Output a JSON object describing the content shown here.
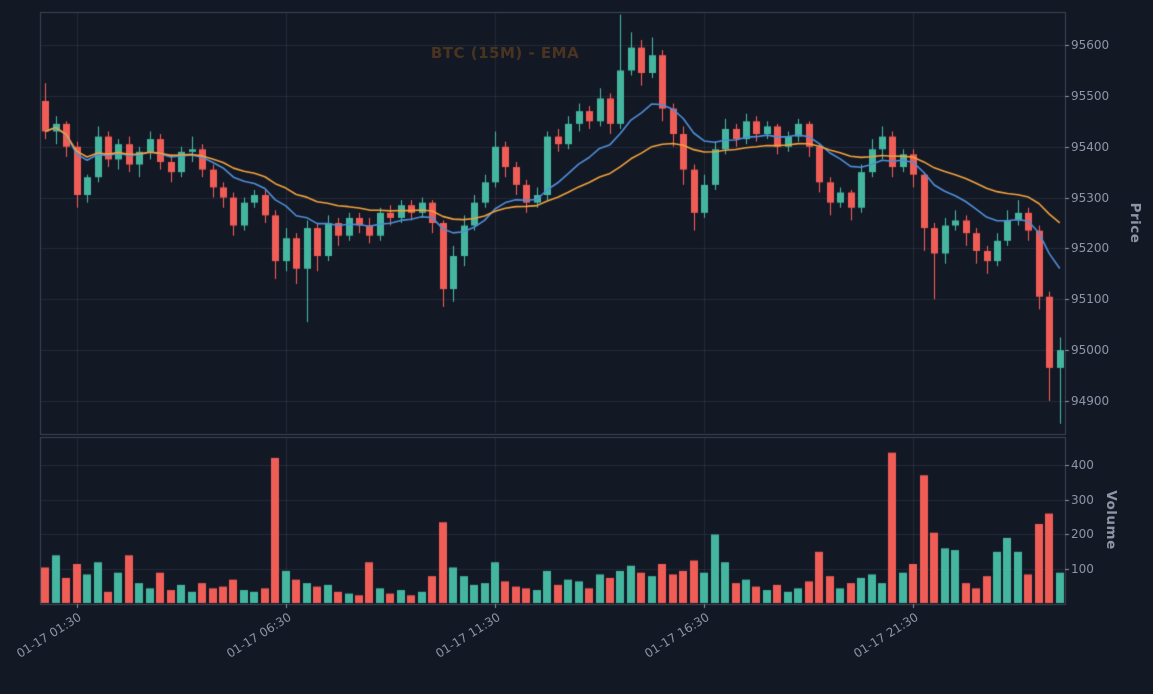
{
  "chart_data": {
    "type": "candlestick",
    "title": "BTC (15M) - EMA",
    "symbol": "BTC",
    "interval": "15M",
    "price_axis": {
      "label": "Price",
      "ticks": [
        95600,
        95500,
        95400,
        95300,
        95200,
        95100,
        95000,
        94900
      ],
      "range": [
        94835,
        95665
      ]
    },
    "volume_axis": {
      "label": "Volume",
      "ticks": [
        400,
        300,
        200,
        100
      ],
      "range": [
        0,
        480
      ]
    },
    "x_axis": {
      "tick_labels": [
        "01-17 01:30",
        "01-17 06:30",
        "01-17 11:30",
        "01-17 16:30",
        "01-17 21:30"
      ],
      "tick_indices": [
        3,
        23,
        43,
        63,
        83
      ]
    },
    "legend_position": "none",
    "grid": true,
    "indicators": [
      {
        "type": "ema",
        "period": 12,
        "color": "#4f8fd9"
      },
      {
        "type": "ema",
        "period": 30,
        "color": "#f0a23c"
      }
    ],
    "theme": {
      "background": "#131825",
      "up_color": "#44b69f",
      "down_color": "#f05c56",
      "grid_color": "rgba(140,152,178,0.14)",
      "spine_color": "#3d4455",
      "tick_color": "#8d95a6",
      "title_color": "#4a3420"
    },
    "candles_format": [
      "open",
      "high",
      "low",
      "close",
      "volume"
    ],
    "candles": [
      [
        95490,
        95525,
        95415,
        95430,
        105
      ],
      [
        95430,
        95460,
        95405,
        95445,
        140
      ],
      [
        95445,
        95450,
        95380,
        95400,
        75
      ],
      [
        95400,
        95410,
        95280,
        95305,
        115
      ],
      [
        95305,
        95345,
        95290,
        95340,
        85
      ],
      [
        95340,
        95440,
        95330,
        95420,
        120
      ],
      [
        95420,
        95430,
        95360,
        95375,
        35
      ],
      [
        95375,
        95415,
        95355,
        95405,
        90
      ],
      [
        95405,
        95420,
        95350,
        95365,
        140
      ],
      [
        95365,
        95400,
        95340,
        95390,
        60
      ],
      [
        95390,
        95430,
        95375,
        95415,
        45
      ],
      [
        95415,
        95425,
        95355,
        95370,
        90
      ],
      [
        95370,
        95385,
        95330,
        95350,
        40
      ],
      [
        95350,
        95400,
        95340,
        95390,
        55
      ],
      [
        95390,
        95420,
        95370,
        95395,
        35
      ],
      [
        95395,
        95405,
        95340,
        95355,
        60
      ],
      [
        95355,
        95365,
        95300,
        95320,
        45
      ],
      [
        95320,
        95330,
        95280,
        95300,
        50
      ],
      [
        95300,
        95310,
        95225,
        95245,
        70
      ],
      [
        95245,
        95300,
        95235,
        95290,
        40
      ],
      [
        95290,
        95315,
        95280,
        95305,
        35
      ],
      [
        95305,
        95315,
        95250,
        95265,
        45
      ],
      [
        95265,
        95275,
        95140,
        95175,
        420
      ],
      [
        95175,
        95240,
        95155,
        95220,
        95
      ],
      [
        95220,
        95230,
        95130,
        95160,
        70
      ],
      [
        95160,
        95255,
        95055,
        95240,
        60
      ],
      [
        95240,
        95250,
        95155,
        95185,
        50
      ],
      [
        95185,
        95265,
        95175,
        95250,
        55
      ],
      [
        95250,
        95260,
        95205,
        95225,
        35
      ],
      [
        95225,
        95270,
        95215,
        95260,
        30
      ],
      [
        95260,
        95270,
        95230,
        95245,
        25
      ],
      [
        95245,
        95260,
        95210,
        95225,
        120
      ],
      [
        95225,
        95280,
        95215,
        95270,
        45
      ],
      [
        95270,
        95285,
        95245,
        95260,
        30
      ],
      [
        95260,
        95295,
        95250,
        95285,
        40
      ],
      [
        95285,
        95295,
        95255,
        95270,
        25
      ],
      [
        95270,
        95300,
        95260,
        95290,
        35
      ],
      [
        95290,
        95295,
        95230,
        95250,
        80
      ],
      [
        95250,
        95255,
        95085,
        95120,
        235
      ],
      [
        95120,
        95205,
        95095,
        95185,
        105
      ],
      [
        95185,
        95265,
        95165,
        95245,
        80
      ],
      [
        95245,
        95305,
        95235,
        95290,
        55
      ],
      [
        95290,
        95345,
        95280,
        95330,
        60
      ],
      [
        95330,
        95430,
        95320,
        95400,
        120
      ],
      [
        95400,
        95410,
        95340,
        95360,
        65
      ],
      [
        95360,
        95370,
        95305,
        95325,
        50
      ],
      [
        95325,
        95335,
        95270,
        95290,
        45
      ],
      [
        95290,
        95320,
        95280,
        95305,
        40
      ],
      [
        95305,
        95430,
        95295,
        95420,
        95
      ],
      [
        95420,
        95435,
        95390,
        95405,
        55
      ],
      [
        95405,
        95460,
        95395,
        95445,
        70
      ],
      [
        95445,
        95485,
        95430,
        95470,
        65
      ],
      [
        95470,
        95480,
        95435,
        95450,
        45
      ],
      [
        95450,
        95515,
        95440,
        95495,
        85
      ],
      [
        95495,
        95505,
        95425,
        95445,
        75
      ],
      [
        95445,
        95660,
        95435,
        95550,
        95
      ],
      [
        95550,
        95625,
        95540,
        95595,
        110
      ],
      [
        95595,
        95610,
        95520,
        95545,
        90
      ],
      [
        95545,
        95615,
        95535,
        95580,
        80
      ],
      [
        95580,
        95590,
        95450,
        95475,
        115
      ],
      [
        95475,
        95485,
        95400,
        95425,
        85
      ],
      [
        95425,
        95440,
        95325,
        95355,
        95
      ],
      [
        95355,
        95365,
        95235,
        95270,
        125
      ],
      [
        95270,
        95345,
        95260,
        95325,
        90
      ],
      [
        95325,
        95410,
        95315,
        95395,
        200
      ],
      [
        95395,
        95455,
        95385,
        95435,
        120
      ],
      [
        95435,
        95445,
        95400,
        95415,
        60
      ],
      [
        95415,
        95465,
        95405,
        95450,
        70
      ],
      [
        95450,
        95460,
        95410,
        95425,
        50
      ],
      [
        95425,
        95450,
        95415,
        95440,
        40
      ],
      [
        95440,
        95445,
        95385,
        95400,
        55
      ],
      [
        95400,
        95430,
        95390,
        95420,
        35
      ],
      [
        95420,
        95455,
        95410,
        95445,
        45
      ],
      [
        95445,
        95450,
        95380,
        95400,
        65
      ],
      [
        95400,
        95405,
        95310,
        95330,
        150
      ],
      [
        95330,
        95340,
        95265,
        95290,
        80
      ],
      [
        95290,
        95320,
        95280,
        95310,
        45
      ],
      [
        95310,
        95315,
        95255,
        95280,
        60
      ],
      [
        95280,
        95365,
        95270,
        95350,
        75
      ],
      [
        95350,
        95415,
        95340,
        95395,
        85
      ],
      [
        95395,
        95440,
        95375,
        95420,
        60
      ],
      [
        95420,
        95430,
        95340,
        95360,
        435
      ],
      [
        95360,
        95395,
        95350,
        95385,
        90
      ],
      [
        95385,
        95395,
        95320,
        95345,
        115
      ],
      [
        95345,
        95350,
        95195,
        95240,
        370
      ],
      [
        95240,
        95250,
        95100,
        95190,
        205
      ],
      [
        95190,
        95260,
        95170,
        95245,
        160
      ],
      [
        95245,
        95275,
        95235,
        95255,
        155
      ],
      [
        95255,
        95265,
        95205,
        95230,
        60
      ],
      [
        95230,
        95240,
        95170,
        95195,
        45
      ],
      [
        95195,
        95205,
        95150,
        95175,
        80
      ],
      [
        95175,
        95230,
        95165,
        95215,
        150
      ],
      [
        95215,
        95275,
        95205,
        95255,
        190
      ],
      [
        95255,
        95295,
        95245,
        95270,
        150
      ],
      [
        95270,
        95280,
        95215,
        95235,
        85
      ],
      [
        95235,
        95245,
        95080,
        95105,
        230
      ],
      [
        95105,
        95115,
        94900,
        94965,
        260
      ],
      [
        94965,
        95025,
        94855,
        95000,
        90
      ]
    ]
  }
}
